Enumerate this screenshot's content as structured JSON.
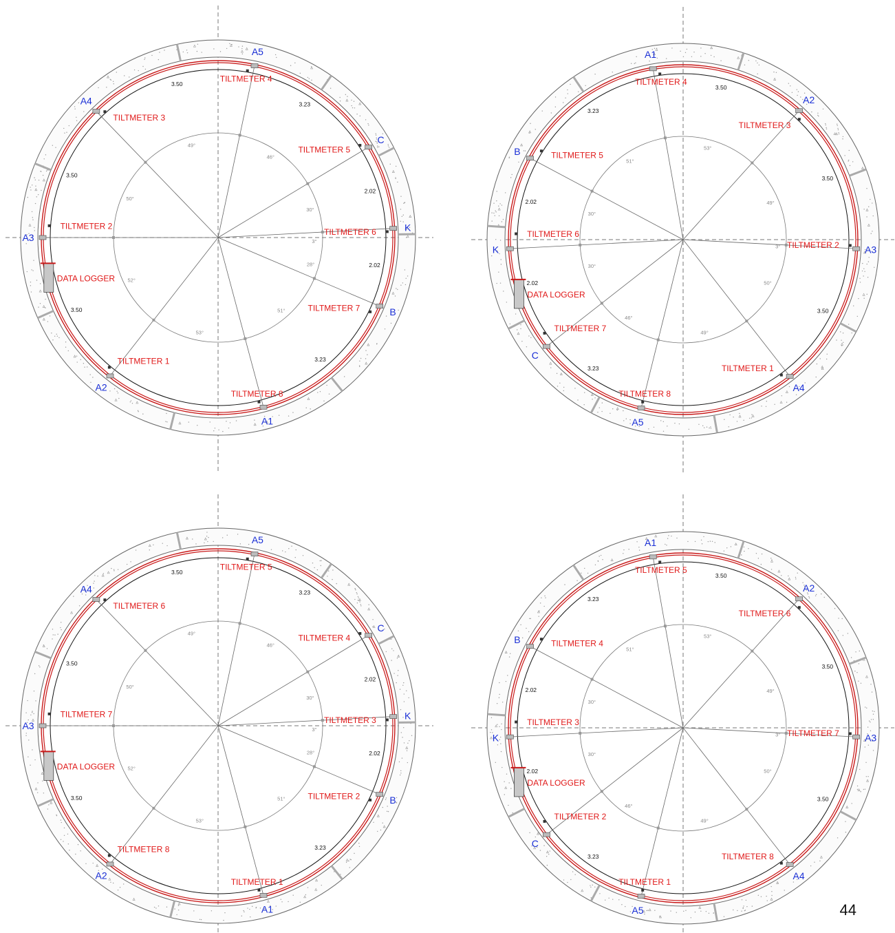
{
  "page_number": "44",
  "colors": {
    "segment_label": "#1a2fd6",
    "tiltmeter": "#e01818",
    "lining_ring": "#c81818",
    "dimension": "#111111",
    "angle": "#888888",
    "concrete_stipple": "#9a9a9a"
  },
  "rings": [
    {
      "id": "ring-1",
      "segments": [
        {
          "label": "A5",
          "angle": 78
        },
        {
          "label": "A4",
          "angle": 134
        },
        {
          "label": "A3",
          "angle": 180
        },
        {
          "label": "A2",
          "angle": 232
        },
        {
          "label": "A1",
          "angle": 285
        },
        {
          "label": "B",
          "angle": 337
        },
        {
          "label": "K",
          "angle": 3
        },
        {
          "label": "C",
          "angle": 31
        }
      ],
      "tiltmeters": [
        {
          "label": "TILTMETER 4",
          "angle": 80
        },
        {
          "label": "TILTMETER 3",
          "angle": 132
        },
        {
          "label": "TILTMETER 5",
          "angle": 33
        },
        {
          "label": "TILTMETER 2",
          "angle": 176
        },
        {
          "label": "TILTMETER 6",
          "angle": 2
        },
        {
          "label": "TILTMETER 7",
          "angle": 334
        },
        {
          "label": "TILTMETER 1",
          "angle": 230
        },
        {
          "label": "TILTMETER 8",
          "angle": 284
        }
      ],
      "data_logger": {
        "label": "DATA LOGGER",
        "angle": 190
      },
      "dimensions": [
        {
          "text": "3.50",
          "angle": 105
        },
        {
          "text": "3.23",
          "angle": 57
        },
        {
          "text": "3.50",
          "angle": 157
        },
        {
          "text": "2.02",
          "angle": 17
        },
        {
          "text": "2.02",
          "angle": 350
        },
        {
          "text": "3.50",
          "angle": 207
        },
        {
          "text": "3.23",
          "angle": 310
        }
      ],
      "angles": [
        {
          "text": "49°",
          "angle": 106
        },
        {
          "text": "46°",
          "angle": 57
        },
        {
          "text": "50°",
          "angle": 156
        },
        {
          "text": "30°",
          "angle": 17
        },
        {
          "text": "3°",
          "angle": 358
        },
        {
          "text": "28°",
          "angle": 344
        },
        {
          "text": "52°",
          "angle": 206
        },
        {
          "text": "51°",
          "angle": 311
        },
        {
          "text": "53°",
          "angle": 259
        }
      ]
    },
    {
      "id": "ring-2",
      "segments": [
        {
          "label": "A1",
          "angle": 100
        },
        {
          "label": "A2",
          "angle": 48
        },
        {
          "label": "B",
          "angle": 152
        },
        {
          "label": "K",
          "angle": 183
        },
        {
          "label": "A3",
          "angle": 357
        },
        {
          "label": "C",
          "angle": 218
        },
        {
          "label": "A4",
          "angle": 308
        },
        {
          "label": "A5",
          "angle": 256
        }
      ],
      "tiltmeters": [
        {
          "label": "TILTMETER 4",
          "angle": 98
        },
        {
          "label": "TILTMETER 3",
          "angle": 46
        },
        {
          "label": "TILTMETER 5",
          "angle": 148
        },
        {
          "label": "TILTMETER 6",
          "angle": 178
        },
        {
          "label": "TILTMETER 2",
          "angle": 358
        },
        {
          "label": "TILTMETER 7",
          "angle": 214
        },
        {
          "label": "TILTMETER 1",
          "angle": 306
        },
        {
          "label": "TILTMETER 8",
          "angle": 256
        }
      ],
      "data_logger": {
        "label": "DATA LOGGER",
        "angle": 195
      },
      "dimensions": [
        {
          "text": "3.50",
          "angle": 76
        },
        {
          "text": "3.23",
          "angle": 125
        },
        {
          "text": "3.50",
          "angle": 23
        },
        {
          "text": "2.02",
          "angle": 166
        },
        {
          "text": "2.02",
          "angle": 196
        },
        {
          "text": "3.50",
          "angle": 333
        },
        {
          "text": "3.23",
          "angle": 235
        }
      ],
      "angles": [
        {
          "text": "53°",
          "angle": 75
        },
        {
          "text": "51°",
          "angle": 124
        },
        {
          "text": "49°",
          "angle": 23
        },
        {
          "text": "30°",
          "angle": 164
        },
        {
          "text": "3°",
          "angle": 356
        },
        {
          "text": "30°",
          "angle": 196
        },
        {
          "text": "50°",
          "angle": 333
        },
        {
          "text": "46°",
          "angle": 235
        },
        {
          "text": "49°",
          "angle": 283
        }
      ]
    },
    {
      "id": "ring-3",
      "segments": [
        {
          "label": "A5",
          "angle": 78
        },
        {
          "label": "A4",
          "angle": 134
        },
        {
          "label": "A3",
          "angle": 180
        },
        {
          "label": "A2",
          "angle": 232
        },
        {
          "label": "A1",
          "angle": 285
        },
        {
          "label": "B",
          "angle": 337
        },
        {
          "label": "K",
          "angle": 3
        },
        {
          "label": "C",
          "angle": 31
        }
      ],
      "tiltmeters": [
        {
          "label": "TILTMETER 5",
          "angle": 80
        },
        {
          "label": "TILTMETER 6",
          "angle": 132
        },
        {
          "label": "TILTMETER 4",
          "angle": 33
        },
        {
          "label": "TILTMETER 7",
          "angle": 176
        },
        {
          "label": "TILTMETER 3",
          "angle": 2
        },
        {
          "label": "TILTMETER 2",
          "angle": 334
        },
        {
          "label": "TILTMETER 8",
          "angle": 230
        },
        {
          "label": "TILTMETER 1",
          "angle": 284
        }
      ],
      "data_logger": {
        "label": "DATA LOGGER",
        "angle": 190
      },
      "dimensions": [
        {
          "text": "3.50",
          "angle": 105
        },
        {
          "text": "3.23",
          "angle": 57
        },
        {
          "text": "3.50",
          "angle": 157
        },
        {
          "text": "2.02",
          "angle": 17
        },
        {
          "text": "2.02",
          "angle": 350
        },
        {
          "text": "3.50",
          "angle": 207
        },
        {
          "text": "3.23",
          "angle": 310
        }
      ],
      "angles": [
        {
          "text": "49°",
          "angle": 106
        },
        {
          "text": "46°",
          "angle": 57
        },
        {
          "text": "50°",
          "angle": 156
        },
        {
          "text": "30°",
          "angle": 17
        },
        {
          "text": "3°",
          "angle": 358
        },
        {
          "text": "28°",
          "angle": 344
        },
        {
          "text": "52°",
          "angle": 206
        },
        {
          "text": "51°",
          "angle": 311
        },
        {
          "text": "53°",
          "angle": 259
        }
      ]
    },
    {
      "id": "ring-4",
      "segments": [
        {
          "label": "A1",
          "angle": 100
        },
        {
          "label": "A2",
          "angle": 48
        },
        {
          "label": "B",
          "angle": 152
        },
        {
          "label": "K",
          "angle": 183
        },
        {
          "label": "A3",
          "angle": 357
        },
        {
          "label": "C",
          "angle": 218
        },
        {
          "label": "A4",
          "angle": 308
        },
        {
          "label": "A5",
          "angle": 256
        }
      ],
      "tiltmeters": [
        {
          "label": "TILTMETER 5",
          "angle": 98
        },
        {
          "label": "TILTMETER 6",
          "angle": 46
        },
        {
          "label": "TILTMETER 4",
          "angle": 148
        },
        {
          "label": "TILTMETER 3",
          "angle": 178
        },
        {
          "label": "TILTMETER 7",
          "angle": 358
        },
        {
          "label": "TILTMETER 2",
          "angle": 214
        },
        {
          "label": "TILTMETER 8",
          "angle": 306
        },
        {
          "label": "TILTMETER 1",
          "angle": 256
        }
      ],
      "data_logger": {
        "label": "DATA LOGGER",
        "angle": 195
      },
      "dimensions": [
        {
          "text": "3.50",
          "angle": 76
        },
        {
          "text": "3.23",
          "angle": 125
        },
        {
          "text": "3.50",
          "angle": 23
        },
        {
          "text": "2.02",
          "angle": 166
        },
        {
          "text": "2.02",
          "angle": 196
        },
        {
          "text": "3.50",
          "angle": 333
        },
        {
          "text": "3.23",
          "angle": 235
        }
      ],
      "angles": [
        {
          "text": "53°",
          "angle": 75
        },
        {
          "text": "51°",
          "angle": 124
        },
        {
          "text": "49°",
          "angle": 23
        },
        {
          "text": "30°",
          "angle": 164
        },
        {
          "text": "3°",
          "angle": 356
        },
        {
          "text": "30°",
          "angle": 196
        },
        {
          "text": "50°",
          "angle": 333
        },
        {
          "text": "46°",
          "angle": 235
        },
        {
          "text": "49°",
          "angle": 283
        }
      ]
    }
  ]
}
